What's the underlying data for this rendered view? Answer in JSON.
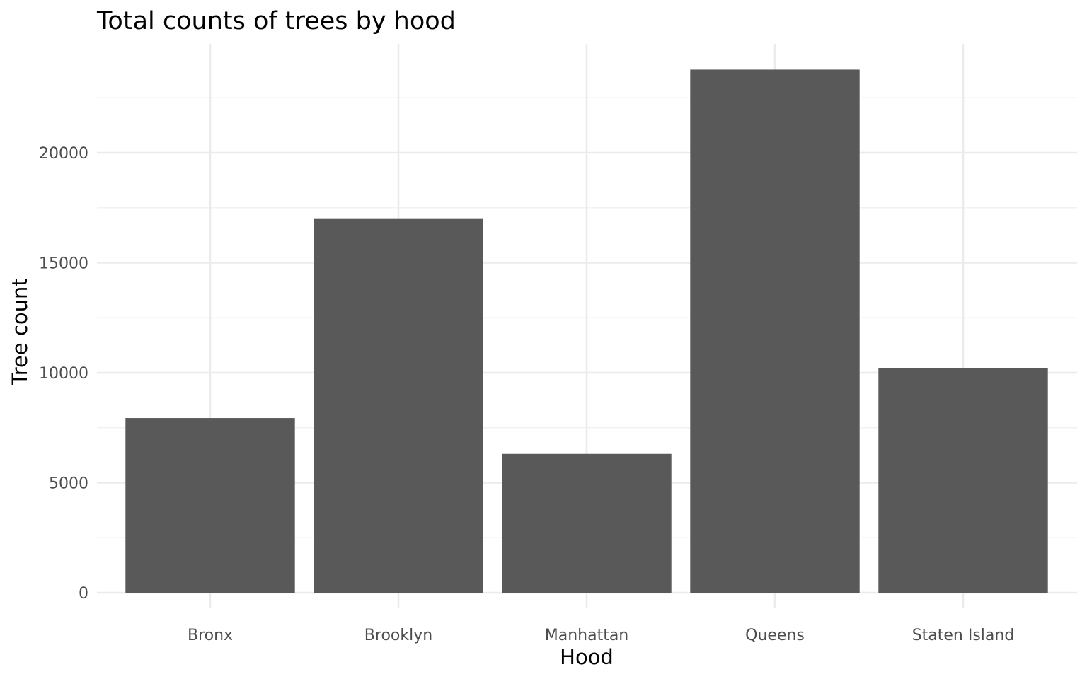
{
  "chart_data": {
    "type": "bar",
    "title": "Total counts of trees by hood",
    "xlabel": "Hood",
    "ylabel": "Tree count",
    "categories": [
      "Bronx",
      "Brooklyn",
      "Manhattan",
      "Queens",
      "Staten Island"
    ],
    "values": [
      7940,
      17020,
      6310,
      23780,
      10200
    ],
    "ylim": [
      0,
      25000
    ],
    "yticks": [
      0,
      5000,
      10000,
      15000,
      20000
    ],
    "ytick_labels": [
      "0",
      "5000",
      "10000",
      "15000",
      "20000"
    ],
    "grid": true,
    "legend": "none",
    "bar_color": "#595959"
  }
}
